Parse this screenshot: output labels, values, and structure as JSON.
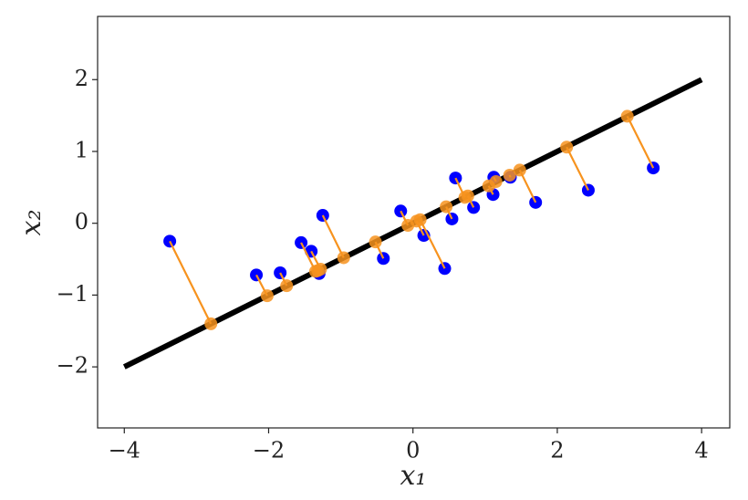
{
  "chart_data": {
    "type": "scatter",
    "xlabel": "x₁",
    "ylabel": "x₂",
    "xlim": [
      -4.37,
      4.39
    ],
    "ylim": [
      -2.85,
      2.88
    ],
    "xticks": [
      {
        "value": -4,
        "label": "−4"
      },
      {
        "value": -2,
        "label": "−2"
      },
      0,
      2,
      4
    ],
    "yticks": [
      {
        "value": -2,
        "label": "−2"
      },
      {
        "value": -1,
        "label": "−1"
      },
      0,
      1,
      2
    ],
    "series": [
      {
        "type": "line",
        "color": "#000000",
        "x": [
          -4,
          4
        ],
        "values": [
          -2,
          2
        ]
      },
      {
        "type": "scatter",
        "color": "#0000ff",
        "x": [
          -3.37,
          -2.17,
          -1.84,
          -1.55,
          -1.41,
          -1.3,
          -1.25,
          -0.41,
          -0.17,
          0.15,
          0.44,
          0.54,
          0.59,
          0.84,
          1.11,
          1.12,
          1.35,
          1.7,
          2.43,
          3.33
        ],
        "values": [
          -0.25,
          -0.72,
          -0.69,
          -0.27,
          -0.39,
          -0.7,
          0.11,
          -0.49,
          0.17,
          -0.17,
          -0.63,
          0.06,
          0.63,
          0.22,
          0.4,
          0.64,
          0.64,
          0.29,
          0.46,
          0.77
        ]
      },
      {
        "type": "scatter",
        "color": "#f7931e",
        "x": [
          -2.8,
          -2.02,
          -1.75,
          -1.35,
          -1.28,
          -1.32,
          -0.96,
          -0.52,
          -0.07,
          0.05,
          0.1,
          0.46,
          0.72,
          0.76,
          1.05,
          1.15,
          1.34,
          1.48,
          2.13,
          2.97
        ],
        "values": [
          -1.4,
          -1.01,
          -0.87,
          -0.67,
          -0.64,
          -0.66,
          -0.48,
          -0.26,
          -0.03,
          0.03,
          0.05,
          0.23,
          0.36,
          0.38,
          0.52,
          0.58,
          0.67,
          0.74,
          1.06,
          1.49
        ]
      }
    ]
  }
}
